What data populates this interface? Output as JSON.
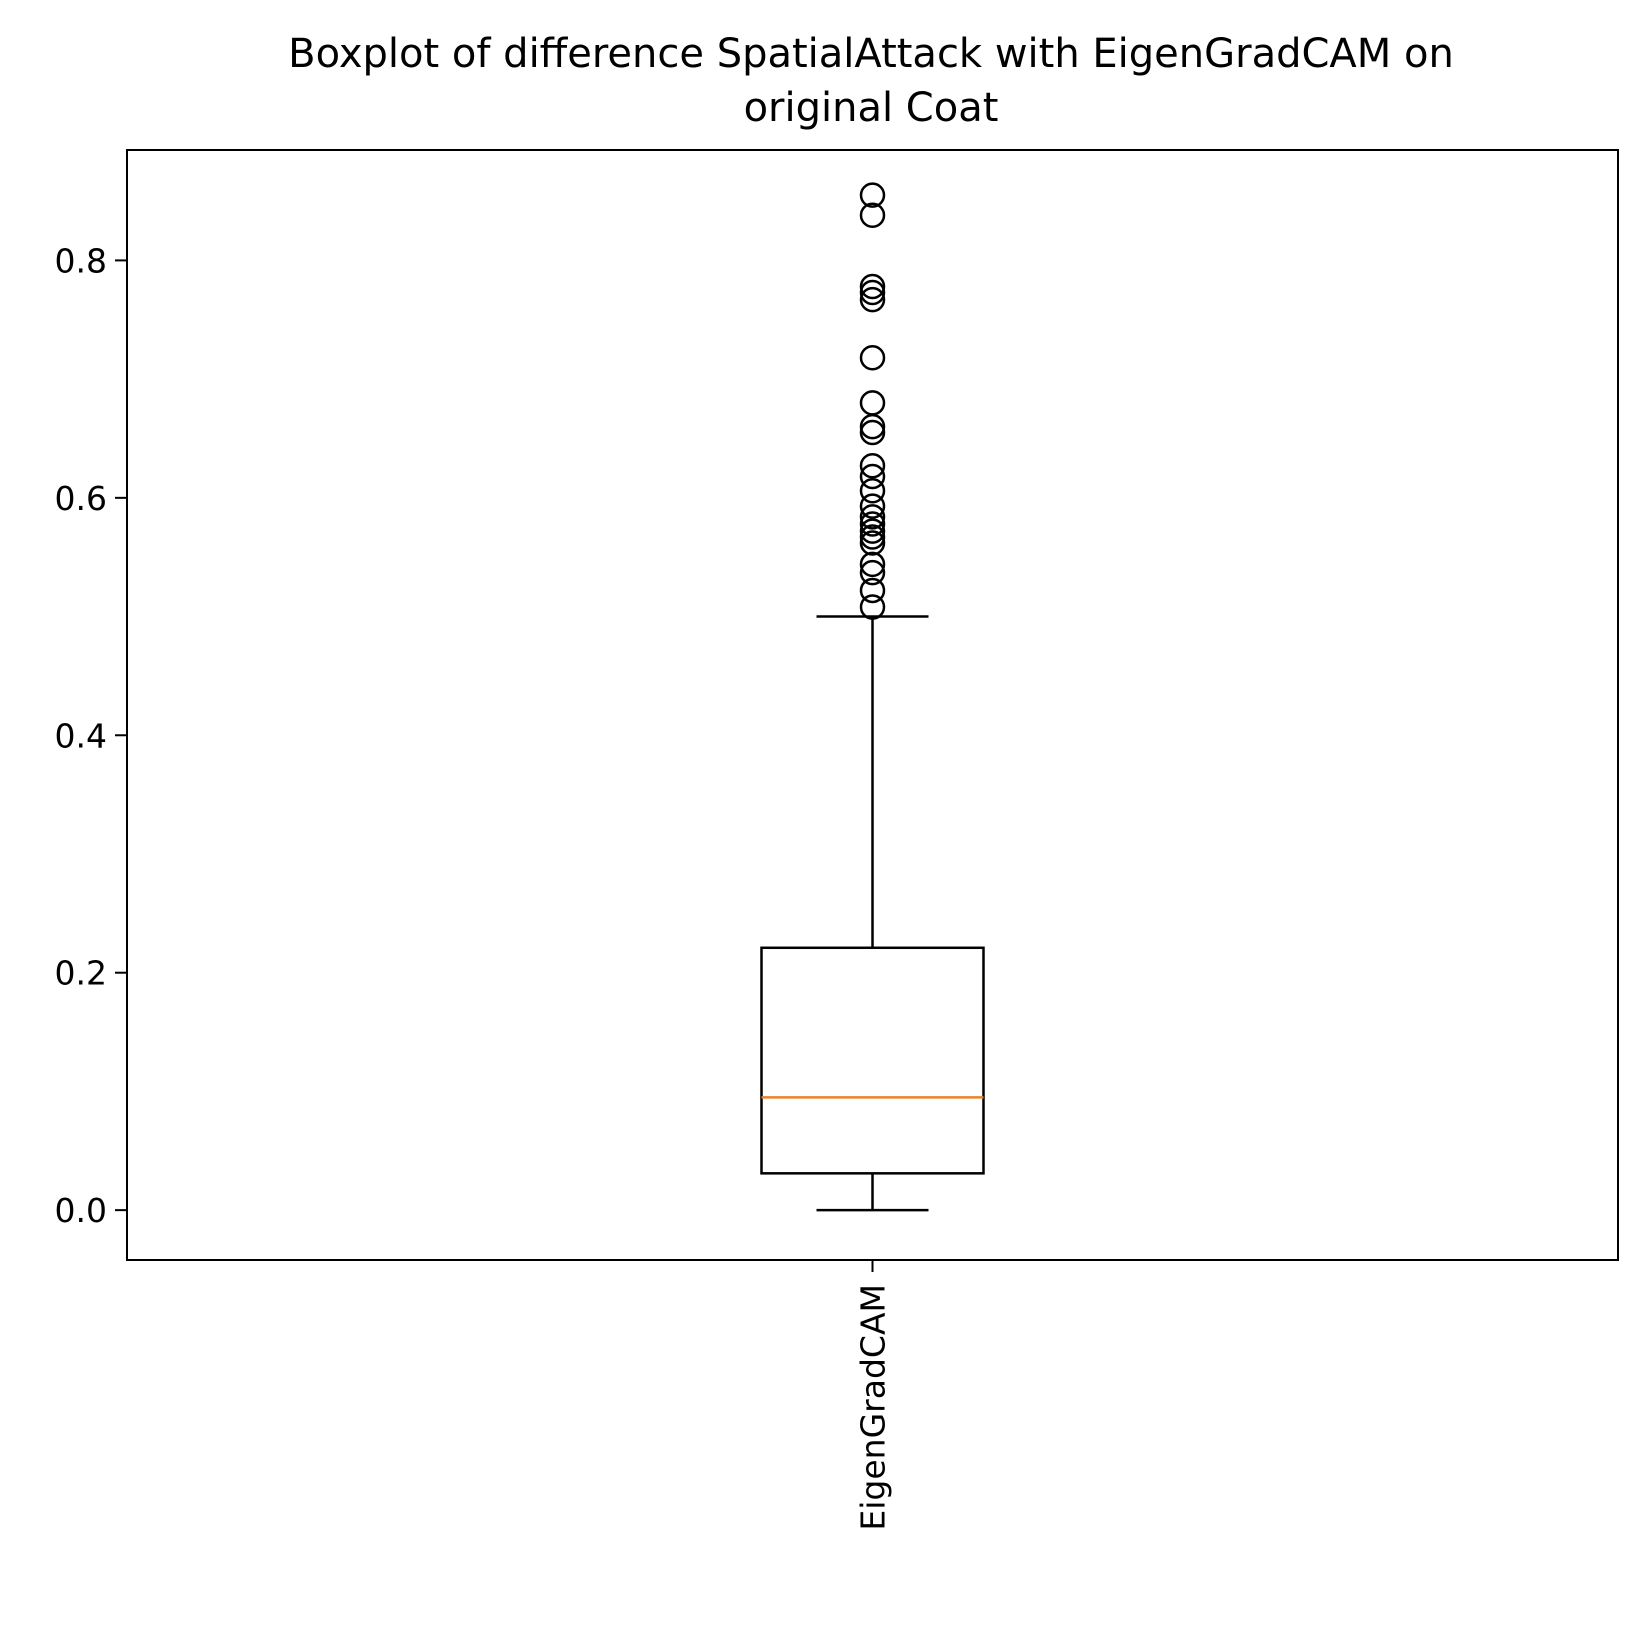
{
  "chart_data": {
    "type": "boxplot",
    "title": "Boxplot of difference SpatialAttack with EigenGradCAM on original Coat",
    "title_lines": [
      "Boxplot of difference SpatialAttack with EigenGradCAM on",
      "original Coat"
    ],
    "xlabel": "",
    "ylabel": "",
    "categories": [
      "EigenGradCAM"
    ],
    "ylim": [
      -0.042,
      0.893
    ],
    "yticks": [
      0.0,
      0.2,
      0.4,
      0.6,
      0.8
    ],
    "ytick_labels": [
      "0.0",
      "0.2",
      "0.4",
      "0.6",
      "0.8"
    ],
    "grid": false,
    "boxes": [
      {
        "name": "EigenGradCAM",
        "whisker_low": 0.0,
        "q1": 0.031,
        "median": 0.095,
        "q3": 0.221,
        "whisker_high": 0.5,
        "outliers": [
          0.508,
          0.522,
          0.537,
          0.544,
          0.562,
          0.567,
          0.572,
          0.578,
          0.584,
          0.593,
          0.606,
          0.618,
          0.627,
          0.655,
          0.66,
          0.68,
          0.718,
          0.767,
          0.773,
          0.778,
          0.838,
          0.855
        ]
      }
    ],
    "colors": {
      "box": "#000000",
      "median": "#e8832a",
      "outlier": "#000000",
      "axes": "#000000"
    }
  }
}
